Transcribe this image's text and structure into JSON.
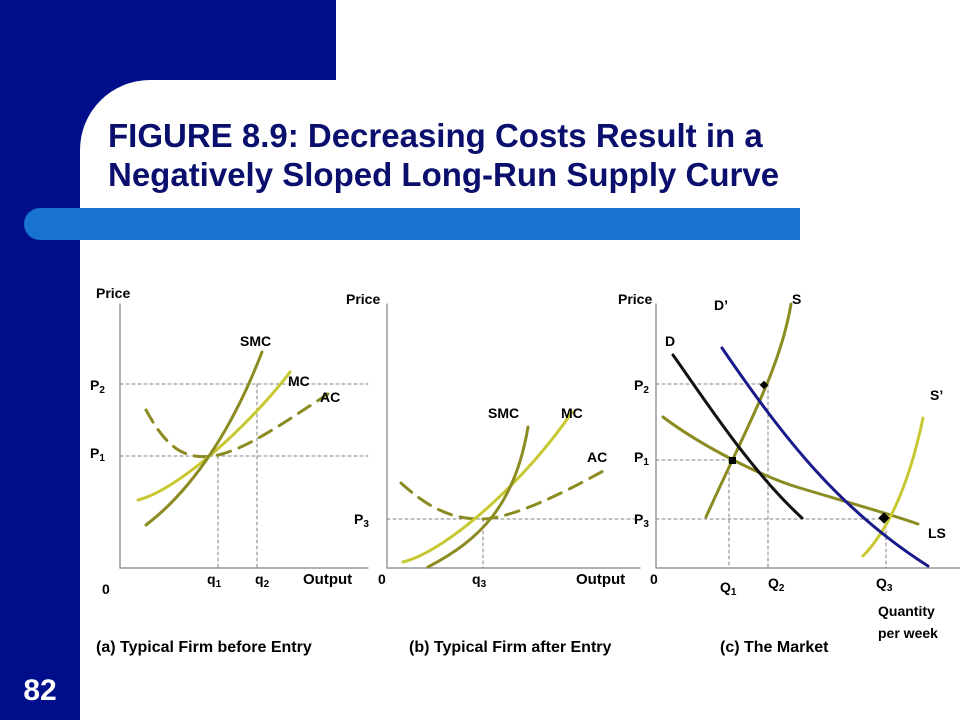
{
  "slide": {
    "title_line1": "FIGURE 8.9: Decreasing Costs Result in a",
    "title_line2": "Negatively Sloped Long-Run Supply Curve",
    "page_number": "82"
  },
  "panel_a": {
    "y_axis_label": "Price",
    "x_axis_label": "Output",
    "origin": "0",
    "price_labels": [
      {
        "base": "P",
        "sub": "2"
      },
      {
        "base": "P",
        "sub": "1"
      }
    ],
    "quantity_labels": [
      {
        "base": "q",
        "sub": "1"
      },
      {
        "base": "q",
        "sub": "2"
      }
    ],
    "curve_labels": {
      "smc": "SMC",
      "mc": "MC",
      "ac": "AC"
    },
    "caption": "(a) Typical Firm before Entry"
  },
  "panel_b": {
    "y_axis_label": "Price",
    "x_axis_label": "Output",
    "origin": "0",
    "price_labels": [
      {
        "base": "P",
        "sub": "3"
      }
    ],
    "quantity_labels": [
      {
        "base": "q",
        "sub": "3"
      }
    ],
    "curve_labels": {
      "smc": "SMC",
      "mc": "MC",
      "ac": "AC"
    },
    "caption": "(b) Typical Firm after Entry"
  },
  "panel_c": {
    "y_axis_label": "Price",
    "x_axis_label_line1": "Quantity",
    "x_axis_label_line2": "per week",
    "origin": "0",
    "price_labels": [
      {
        "base": "P",
        "sub": "2"
      },
      {
        "base": "P",
        "sub": "1"
      },
      {
        "base": "P",
        "sub": "3"
      }
    ],
    "quantity_labels": [
      {
        "base": "Q",
        "sub": "1"
      },
      {
        "base": "Q",
        "sub": "2"
      },
      {
        "base": "Q",
        "sub": "3"
      }
    ],
    "curve_labels": {
      "d": "D",
      "d_prime": "D’",
      "s": "S",
      "s_prime": "S’",
      "ls": "LS"
    },
    "caption": "(c) The Market"
  },
  "colors": {
    "navy": "#000e8c",
    "title": "#0a0f6e",
    "accent": "#1a72d0",
    "olive": "#8b8b22",
    "yellow_green": "#c8c832",
    "demand_prime": "#1a1a8c",
    "gray_dashed": "#808080"
  }
}
